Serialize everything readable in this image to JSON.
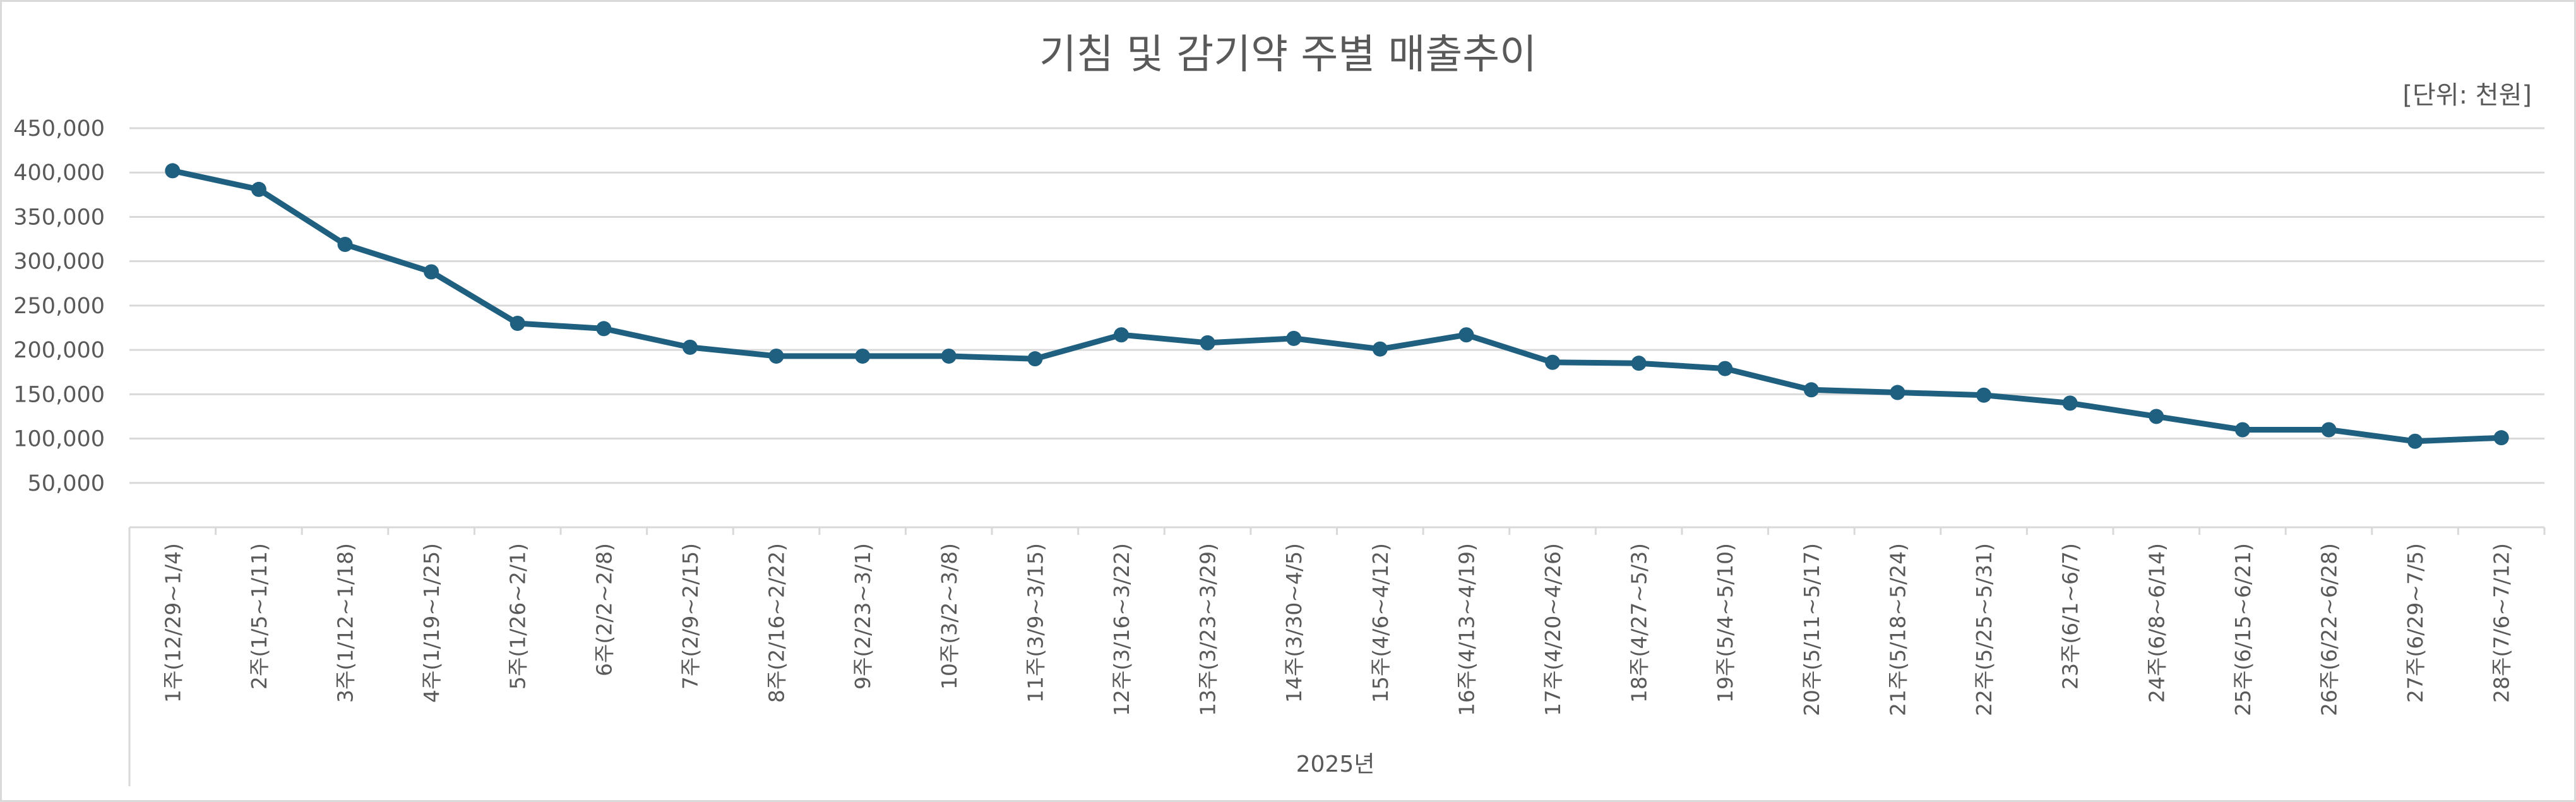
{
  "chart_data": {
    "type": "line",
    "title": "기침 및 감기약 주별 매출추이",
    "unit_label": "[단위: 천원]",
    "xlabel": "2025년",
    "ylabel": "",
    "ylim": [
      0,
      450000
    ],
    "yticks": [
      50000,
      100000,
      150000,
      200000,
      250000,
      300000,
      350000,
      400000,
      450000
    ],
    "ytick_labels": [
      "50,000",
      "100,000",
      "150,000",
      "200,000",
      "250,000",
      "300,000",
      "350,000",
      "400,000",
      "450,000"
    ],
    "grid": true,
    "legend": "none",
    "line_color": "#1f5f7f",
    "categories": [
      "1주(12/29~1/4)",
      "2주(1/5~1/11)",
      "3주(1/12~1/18)",
      "4주(1/19~1/25)",
      "5주(1/26~2/1)",
      "6주(2/2~2/8)",
      "7주(2/9~2/15)",
      "8주(2/16~2/22)",
      "9주(2/23~3/1)",
      "10주(3/2~3/8)",
      "11주(3/9~3/15)",
      "12주(3/16~3/22)",
      "13주(3/23~3/29)",
      "14주(3/30~4/5)",
      "15주(4/6~4/12)",
      "16주(4/13~4/19)",
      "17주(4/20~4/26)",
      "18주(4/27~5/3)",
      "19주(5/4~5/10)",
      "20주(5/11~5/17)",
      "21주(5/18~5/24)",
      "22주(5/25~5/31)",
      "23주(6/1~6/7)",
      "24주(6/8~6/14)",
      "25주(6/15~6/21)",
      "26주(6/22~6/28)",
      "27주(6/29~7/5)",
      "28주(7/6~7/12)"
    ],
    "series": [
      {
        "values": [
          402000,
          381000,
          319000,
          288000,
          230000,
          224000,
          203000,
          193000,
          193000,
          193000,
          190000,
          217000,
          208000,
          213000,
          201000,
          217000,
          186000,
          185000,
          179000,
          155000,
          152000,
          149000,
          140000,
          125000,
          110000,
          110000,
          97000,
          101000
        ]
      }
    ]
  }
}
